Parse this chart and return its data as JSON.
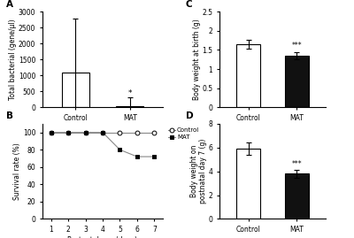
{
  "panel_A": {
    "label": "A",
    "categories": [
      "Control",
      "MAT"
    ],
    "values": [
      1080,
      25
    ],
    "errors_upper": [
      1700,
      280
    ],
    "errors_lower": [
      1080,
      25
    ],
    "bar_colors": [
      "#ffffff",
      "#ffffff"
    ],
    "bar_edge": "#000000",
    "ylabel": "Total bacterial (gene/μl)",
    "ylim": [
      0,
      3000
    ],
    "yticks": [
      0,
      500,
      1000,
      1500,
      2000,
      2500,
      3000
    ],
    "significance": "*",
    "sig_x": 1,
    "sig_y": 320
  },
  "panel_B": {
    "label": "B",
    "xlabel": "Postnatal age (days)",
    "ylabel": "Survival rate (%)",
    "xlim": [
      1,
      7
    ],
    "ylim": [
      0,
      110
    ],
    "yticks": [
      0,
      20,
      40,
      60,
      80,
      100
    ],
    "ytick_labels": [
      "0",
      "20",
      "40",
      "60",
      "80",
      "100"
    ],
    "control_x": [
      1,
      2,
      3,
      4,
      5,
      6,
      7
    ],
    "control_y": [
      100,
      100,
      100,
      100,
      100,
      100,
      100
    ],
    "mat_x": [
      1,
      2,
      3,
      4,
      5,
      6,
      7
    ],
    "mat_y": [
      100,
      100,
      100,
      100,
      80,
      72,
      72
    ],
    "legend_control": "Control",
    "legend_mat": "MAT"
  },
  "panel_C": {
    "label": "C",
    "categories": [
      "Control",
      "MAT"
    ],
    "values": [
      1.65,
      1.35
    ],
    "errors": [
      0.12,
      0.1
    ],
    "bar_colors": [
      "#ffffff",
      "#111111"
    ],
    "bar_edge": "#000000",
    "ylabel": "Body weight at birth (g)",
    "ylim": [
      0,
      2.5
    ],
    "yticks": [
      0.0,
      0.5,
      1.0,
      1.5,
      2.0,
      2.5
    ],
    "ytick_labels": [
      "0",
      "0.5",
      "1",
      "1.5",
      "2",
      "2.5"
    ],
    "significance": "***"
  },
  "panel_D": {
    "label": "D",
    "categories": [
      "Control",
      "MAT"
    ],
    "values": [
      5.9,
      3.8
    ],
    "errors": [
      0.5,
      0.35
    ],
    "bar_colors": [
      "#ffffff",
      "#111111"
    ],
    "bar_edge": "#000000",
    "ylabel": "Body weight on\npostnatal day 7 (g)",
    "ylim": [
      0,
      8
    ],
    "yticks": [
      0,
      2,
      4,
      6,
      8
    ],
    "ytick_labels": [
      "0",
      "2",
      "4",
      "6",
      "8"
    ],
    "significance": "***"
  },
  "bg_color": "#ffffff",
  "font_size": 5.5,
  "bar_width": 0.5
}
